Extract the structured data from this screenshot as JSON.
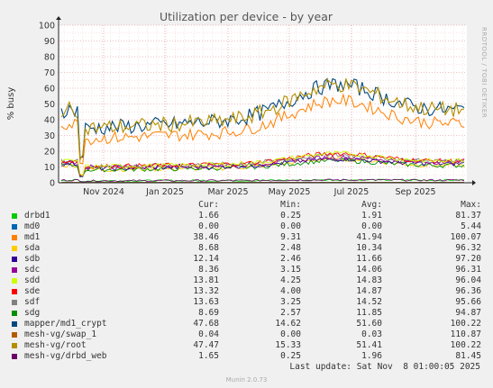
{
  "chart_data": {
    "type": "line",
    "title": "Utilization per device - by year",
    "ylabel": "% busy",
    "ylim": [
      0,
      100
    ],
    "y_ticks": [
      "0",
      "10",
      "20",
      "30",
      "40",
      "50",
      "60",
      "70",
      "80",
      "90",
      "100"
    ],
    "x_ticks": [
      "Nov 2024",
      "Jan 2025",
      "Mar 2025",
      "May 2025",
      "Jul 2025",
      "Sep 2025"
    ],
    "side_text": "RRDTOOL / TOBI OETIKER",
    "grid": true,
    "columns": [
      "Cur:",
      "Min:",
      "Avg:",
      "Max:"
    ],
    "series": [
      {
        "name": "drbd1",
        "color": "#00cc00",
        "cur": "1.66",
        "min": "0.25",
        "avg": "1.91",
        "max": "81.37"
      },
      {
        "name": "md0",
        "color": "#0066b3",
        "cur": "0.00",
        "min": "0.00",
        "avg": "0.00",
        "max": "5.44"
      },
      {
        "name": "md1",
        "color": "#ff8000",
        "cur": "38.46",
        "min": "9.31",
        "avg": "41.94",
        "max": "100.07"
      },
      {
        "name": "sda",
        "color": "#ffcc00",
        "cur": "8.68",
        "min": "2.48",
        "avg": "10.34",
        "max": "96.32"
      },
      {
        "name": "sdb",
        "color": "#330099",
        "cur": "12.14",
        "min": "2.46",
        "avg": "11.66",
        "max": "97.20"
      },
      {
        "name": "sdc",
        "color": "#990099",
        "cur": "8.36",
        "min": "3.15",
        "avg": "14.06",
        "max": "96.31"
      },
      {
        "name": "sdd",
        "color": "#ccff00",
        "cur": "13.81",
        "min": "4.25",
        "avg": "14.83",
        "max": "96.04"
      },
      {
        "name": "sde",
        "color": "#ff0000",
        "cur": "13.32",
        "min": "4.00",
        "avg": "14.87",
        "max": "96.36"
      },
      {
        "name": "sdf",
        "color": "#808080",
        "cur": "13.63",
        "min": "3.25",
        "avg": "14.52",
        "max": "95.66"
      },
      {
        "name": "sdg",
        "color": "#008f00",
        "cur": "8.69",
        "min": "2.57",
        "avg": "11.85",
        "max": "94.87"
      },
      {
        "name": "mapper/md1_crypt",
        "color": "#00487d",
        "cur": "47.68",
        "min": "14.62",
        "avg": "51.60",
        "max": "100.22"
      },
      {
        "name": "mesh-vg/swap_1",
        "color": "#b35a00",
        "cur": "0.04",
        "min": "0.00",
        "avg": "0.03",
        "max": "110.87"
      },
      {
        "name": "mesh-vg/root",
        "color": "#b38f00",
        "cur": "47.47",
        "min": "15.33",
        "avg": "51.41",
        "max": "100.22"
      },
      {
        "name": "mesh-vg/drbd_web",
        "color": "#6b006b",
        "cur": "1.65",
        "min": "0.25",
        "avg": "1.96",
        "max": "81.45"
      }
    ]
  },
  "last_update": "Last update: Sat Nov  8 01:00:05 2025",
  "version": "Munin 2.0.73"
}
